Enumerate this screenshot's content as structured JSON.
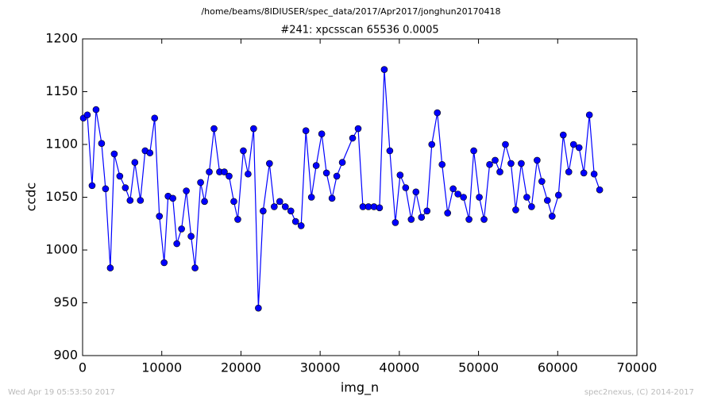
{
  "chart_data": {
    "type": "line",
    "suptitle": "/home/beams/8IDIUSER/spec_data/2017/Apr2017/jonghun20170418",
    "title": "#241: xpcsscan 65536 0.0005",
    "xlabel": "img_n",
    "ylabel": "ccdc",
    "footer_left": "Wed Apr 19 05:53:50 2017",
    "footer_right": "spec2nexus, (C) 2014-2017",
    "xlim": [
      0,
      70000
    ],
    "xticks": [
      0,
      10000,
      20000,
      30000,
      40000,
      50000,
      60000,
      70000
    ],
    "ylim": [
      900,
      1200
    ],
    "yticks": [
      900,
      950,
      1000,
      1050,
      1100,
      1150,
      1200
    ],
    "series": [
      {
        "color": "#0000ff",
        "x": [
          100,
          600,
          1200,
          1700,
          2400,
          2900,
          3500,
          4000,
          4700,
          5400,
          6000,
          6600,
          7300,
          7900,
          8500,
          9100,
          9700,
          10300,
          10800,
          11400,
          11900,
          12500,
          13100,
          13700,
          14200,
          14900,
          15400,
          16000,
          16600,
          17300,
          17900,
          18500,
          19100,
          19600,
          20300,
          20900,
          21600,
          22200,
          22800,
          23600,
          24200,
          24900,
          25600,
          26300,
          26900,
          27600,
          28200,
          28900,
          29500,
          30200,
          30800,
          31500,
          32100,
          32800,
          34100,
          34800,
          35400,
          36100,
          36800,
          37500,
          38100,
          38800,
          39500,
          40100,
          40800,
          41500,
          42100,
          42800,
          43500,
          44100,
          44800,
          45400,
          46100,
          46800,
          47400,
          48100,
          48800,
          49400,
          50100,
          50700,
          51400,
          52100,
          52700,
          53400,
          54100,
          54700,
          55400,
          56100,
          56700,
          57400,
          58000,
          58700,
          59300,
          60100,
          60700,
          61400,
          62000,
          62700,
          63300,
          64000,
          64600,
          65300
        ],
        "values": [
          1125,
          1128,
          1061,
          1133,
          1101,
          1058,
          983,
          1091,
          1070,
          1059,
          1047,
          1083,
          1047,
          1094,
          1092,
          1125,
          1032,
          988,
          1051,
          1049,
          1006,
          1020,
          1056,
          1013,
          983,
          1064,
          1046,
          1074,
          1115,
          1074,
          1074,
          1070,
          1046,
          1029,
          1094,
          1072,
          1115,
          945,
          1037,
          1082,
          1041,
          1046,
          1041,
          1037,
          1027,
          1023,
          1113,
          1050,
          1080,
          1110,
          1073,
          1049,
          1070,
          1083,
          1106,
          1115,
          1041,
          1041,
          1041,
          1040,
          1171,
          1094,
          1026,
          1071,
          1059,
          1029,
          1055,
          1031,
          1037,
          1100,
          1130,
          1081,
          1035,
          1058,
          1053,
          1050,
          1029,
          1094,
          1050,
          1029,
          1081,
          1085,
          1074,
          1100,
          1082,
          1038,
          1082,
          1050,
          1041,
          1085,
          1065,
          1047,
          1032,
          1052,
          1109,
          1074,
          1100,
          1097,
          1073,
          1128,
          1072,
          1057
        ]
      }
    ]
  }
}
